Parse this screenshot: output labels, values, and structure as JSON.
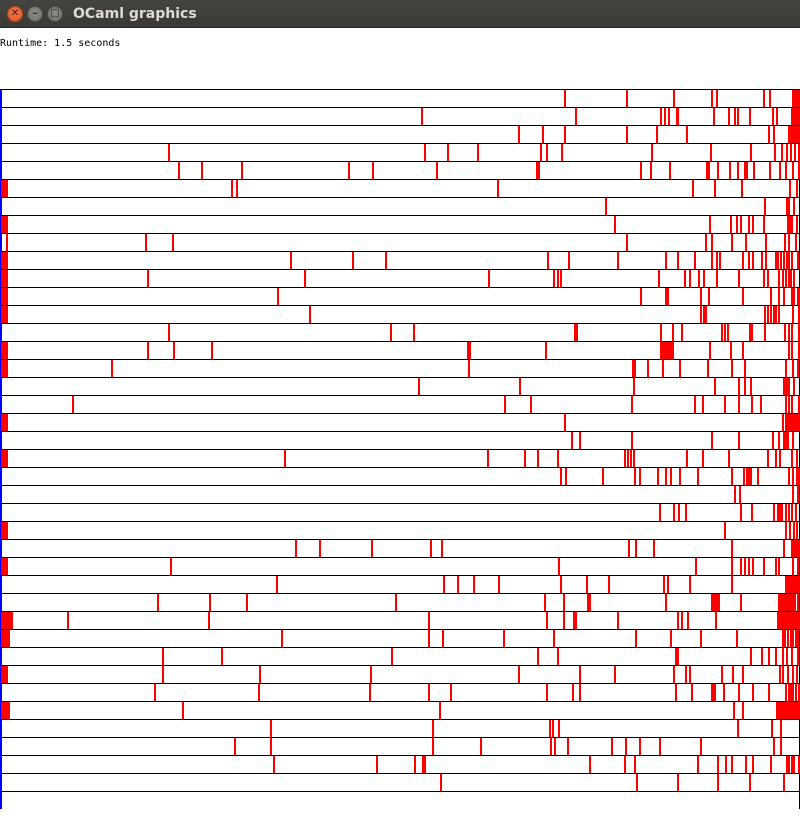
{
  "window": {
    "title": "OCaml graphics",
    "close_glyph": "✕",
    "minimize_glyph": "–",
    "maximize_glyph": "□"
  },
  "status": {
    "runtime_text": "Runtime: 1.5 seconds"
  },
  "colors": {
    "mark": "#ff0000",
    "row_line": "#000000",
    "left_marker": "#0000ff",
    "background": "#ffffff"
  },
  "rows": [
    [
      564,
      626,
      673,
      711,
      716,
      763,
      769,
      792,
      793,
      794,
      795,
      796,
      797,
      798,
      799
    ],
    [
      421,
      575,
      660,
      664,
      668,
      676,
      677,
      713,
      728,
      734,
      737,
      749,
      772,
      776,
      791,
      792,
      793,
      794,
      795,
      796,
      797,
      798,
      799
    ],
    [
      518,
      542,
      564,
      626,
      656,
      686,
      768,
      773,
      788,
      789,
      790,
      791,
      792,
      793,
      794,
      795,
      796,
      797,
      798,
      799
    ],
    [
      168,
      424,
      447,
      477,
      540,
      546,
      561,
      651,
      710,
      750,
      774,
      781,
      786,
      790,
      794,
      798
    ],
    [
      178,
      201,
      241,
      348,
      372,
      436,
      536,
      537,
      538,
      640,
      650,
      669,
      706,
      707,
      708,
      717,
      729,
      737,
      744,
      745,
      746,
      753,
      769,
      779,
      785,
      792,
      799
    ],
    [
      1,
      2,
      3,
      4,
      5,
      6,
      231,
      236,
      497,
      692,
      714,
      741,
      789,
      796
    ],
    [
      605,
      764,
      786,
      787,
      788,
      793
    ],
    [
      1,
      2,
      3,
      4,
      5,
      6,
      614,
      709,
      730,
      736,
      740,
      748,
      752,
      763,
      787,
      789,
      791,
      796
    ],
    [
      6,
      145,
      172,
      626,
      705,
      711,
      731,
      745,
      765,
      784,
      788,
      795
    ],
    [
      1,
      2,
      3,
      4,
      5,
      6,
      290,
      352,
      385,
      547,
      568,
      617,
      665,
      677,
      694,
      711,
      716,
      719,
      742,
      748,
      752,
      761,
      765,
      775,
      777,
      780,
      783,
      786,
      788,
      791,
      797
    ],
    [
      1,
      2,
      3,
      4,
      5,
      6,
      147,
      304,
      488,
      553,
      557,
      560,
      658,
      684,
      689,
      698,
      703,
      716,
      738,
      763,
      767,
      778,
      782,
      785,
      788,
      790,
      793
    ],
    [
      1,
      2,
      3,
      4,
      5,
      6,
      277,
      640,
      665,
      666,
      667,
      700,
      708,
      742,
      770,
      778,
      783,
      791,
      793,
      797,
      799
    ],
    [
      1,
      2,
      3,
      4,
      5,
      6,
      309,
      700,
      703,
      705,
      764,
      767,
      770,
      773,
      775,
      778,
      792,
      798
    ],
    [
      168,
      390,
      413,
      574,
      575,
      576,
      660,
      672,
      681,
      721,
      724,
      727,
      749,
      750,
      751,
      764,
      784,
      788,
      791,
      798
    ],
    [
      1,
      2,
      3,
      4,
      5,
      6,
      147,
      173,
      211,
      467,
      468,
      469,
      545,
      660,
      662,
      664,
      666,
      668,
      670,
      671,
      672,
      672,
      709,
      730,
      742,
      788,
      791,
      799
    ],
    [
      1,
      2,
      3,
      4,
      5,
      6,
      111,
      468,
      632,
      633,
      634,
      647,
      662,
      679,
      707,
      731,
      744,
      785,
      792,
      797
    ],
    [
      418,
      519,
      633,
      714,
      738,
      744,
      750,
      783,
      785,
      787,
      788,
      793
    ],
    [
      72,
      504,
      530,
      631,
      694,
      702,
      724,
      738,
      751,
      760,
      785,
      788,
      791,
      799
    ],
    [
      1,
      2,
      3,
      4,
      5,
      6,
      564,
      782,
      785,
      786,
      787,
      788,
      789,
      790,
      791,
      792,
      793,
      794,
      795,
      796,
      797,
      798,
      799
    ],
    [
      571,
      579,
      631,
      711,
      738,
      772,
      778,
      783,
      785,
      787,
      792
    ],
    [
      1,
      2,
      3,
      4,
      5,
      6,
      284,
      487,
      524,
      537,
      557,
      624,
      627,
      630,
      633,
      686,
      702,
      728,
      767,
      775,
      779,
      791,
      796
    ],
    [
      560,
      565,
      602,
      634,
      639,
      657,
      665,
      670,
      679,
      697,
      731,
      743,
      746,
      748,
      750,
      757,
      788,
      792,
      796,
      799
    ],
    [
      734,
      739,
      792,
      797
    ],
    [
      659,
      673,
      678,
      685,
      740,
      751,
      773,
      777,
      779,
      781,
      785,
      788,
      791,
      795
    ],
    [
      1,
      2,
      3,
      4,
      5,
      6,
      724,
      785,
      789,
      793,
      796
    ],
    [
      295,
      319,
      371,
      430,
      441,
      628,
      635,
      653,
      731,
      783,
      791,
      793,
      795,
      797,
      799
    ],
    [
      1,
      2,
      3,
      4,
      5,
      6,
      170,
      558,
      695,
      731,
      740,
      744,
      748,
      752,
      763,
      775,
      778,
      792,
      797
    ],
    [
      276,
      443,
      457,
      473,
      498,
      560,
      586,
      608,
      663,
      667,
      689,
      731,
      785,
      787,
      789,
      791,
      793,
      795,
      797,
      799
    ],
    [
      157,
      209,
      246,
      395,
      544,
      563,
      587,
      588,
      589,
      665,
      711,
      712,
      713,
      714,
      715,
      716,
      717,
      718,
      740,
      778,
      780,
      782,
      784,
      786,
      788,
      790,
      792,
      794,
      797
    ],
    [
      1,
      2,
      3,
      4,
      5,
      6,
      7,
      8,
      9,
      10,
      11,
      67,
      208,
      428,
      546,
      563,
      573,
      574,
      575,
      617,
      677,
      681,
      687,
      715,
      777,
      779,
      781,
      783,
      785,
      787,
      789,
      791,
      793,
      795,
      797,
      799
    ],
    [
      1,
      2,
      3,
      4,
      5,
      6,
      7,
      8,
      281,
      428,
      442,
      503,
      553,
      635,
      670,
      700,
      736,
      782,
      784,
      787,
      790,
      792,
      795,
      797
    ],
    [
      162,
      221,
      391,
      537,
      557,
      675,
      677,
      750,
      761,
      768,
      775,
      782,
      786,
      791,
      797
    ],
    [
      1,
      2,
      3,
      4,
      5,
      6,
      162,
      259,
      370,
      518,
      579,
      614,
      673,
      685,
      689,
      721,
      732,
      742,
      779,
      782,
      787,
      792,
      796
    ],
    [
      154,
      258,
      369,
      428,
      450,
      546,
      572,
      579,
      675,
      691,
      711,
      712,
      713,
      714,
      723,
      738,
      752,
      768,
      785,
      788,
      790,
      792,
      795,
      799
    ],
    [
      1,
      2,
      3,
      4,
      5,
      6,
      7,
      8,
      182,
      439,
      733,
      742,
      776,
      778,
      780,
      782,
      784,
      786,
      788,
      790,
      792,
      794,
      796,
      798
    ],
    [
      270,
      432,
      549,
      552,
      558,
      737,
      771,
      780
    ],
    [
      234,
      270,
      432,
      480,
      550,
      554,
      567,
      611,
      625,
      639,
      659,
      700,
      773,
      780
    ],
    [
      273,
      376,
      414,
      422,
      424,
      589,
      624,
      634,
      697,
      717,
      725,
      731,
      745,
      752,
      770,
      786,
      788,
      791,
      793,
      799
    ],
    [
      440,
      636,
      677,
      717,
      749,
      783
    ]
  ]
}
